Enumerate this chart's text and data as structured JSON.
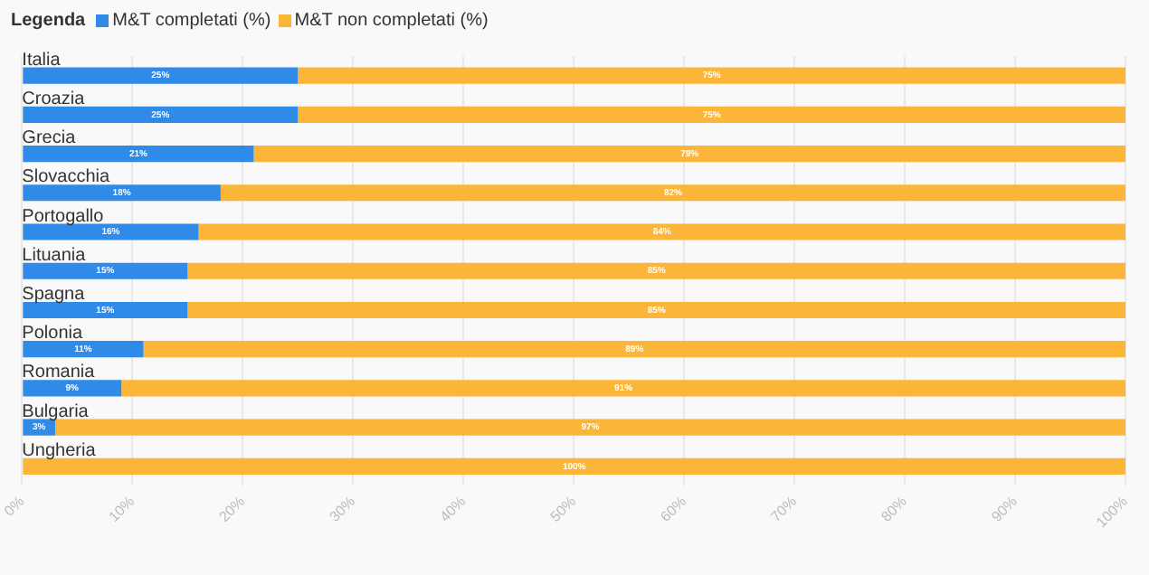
{
  "chart_data": {
    "type": "bar",
    "orientation": "horizontal",
    "stacked": true,
    "legend_title": "Legenda",
    "legend": "top left",
    "grid": "x",
    "categories": [
      "Italia",
      "Croazia",
      "Grecia",
      "Slovacchia",
      "Portogallo",
      "Lituania",
      "Spagna",
      "Polonia",
      "Romania",
      "Bulgaria",
      "Ungheria"
    ],
    "series": [
      {
        "name": "M&T completati (%)",
        "color": "#2f8ae8",
        "values": [
          25,
          25,
          21,
          18,
          16,
          15,
          15,
          11,
          9,
          3,
          0
        ],
        "value_labels": [
          "25%",
          "25%",
          "21%",
          "18%",
          "16%",
          "15%",
          "15%",
          "11%",
          "9%",
          "3%",
          null
        ]
      },
      {
        "name": "M&T non completati (%)",
        "color": "#fbb63a",
        "values": [
          75,
          75,
          79,
          82,
          84,
          85,
          85,
          89,
          91,
          97,
          100
        ],
        "value_labels": [
          "75%",
          "75%",
          "79%",
          "82%",
          "84%",
          "85%",
          "85%",
          "89%",
          "91%",
          "97%",
          "100%"
        ]
      }
    ],
    "xlim": [
      0,
      100
    ],
    "xticks": [
      {
        "value": 0,
        "label": "0%"
      },
      {
        "value": 10,
        "label": "10%"
      },
      {
        "value": 20,
        "label": "20%"
      },
      {
        "value": 30,
        "label": "30%"
      },
      {
        "value": 40,
        "label": "40%"
      },
      {
        "value": 50,
        "label": "50%"
      },
      {
        "value": 60,
        "label": "60%"
      },
      {
        "value": 70,
        "label": "70%"
      },
      {
        "value": 80,
        "label": "80%"
      },
      {
        "value": 90,
        "label": "90%"
      },
      {
        "value": 100,
        "label": "100%"
      }
    ]
  }
}
